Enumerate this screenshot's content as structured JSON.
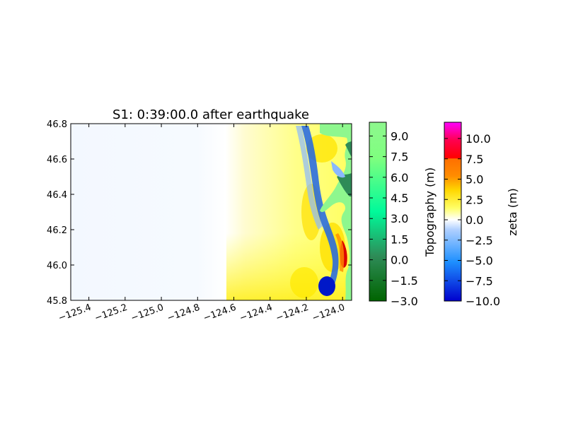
{
  "chart_data": {
    "type": "heatmap",
    "title": "S1: 0:39:00.0 after earthquake",
    "xlabel": "",
    "ylabel": "",
    "xlim": [
      -125.5,
      -123.95
    ],
    "ylim": [
      45.8,
      46.8
    ],
    "x_ticks": [
      {
        "value": -125.4,
        "label": "−125.4"
      },
      {
        "value": -125.2,
        "label": "−125.2"
      },
      {
        "value": -125.0,
        "label": "−125.0"
      },
      {
        "value": -124.8,
        "label": "−124.8"
      },
      {
        "value": -124.6,
        "label": "−124.6"
      },
      {
        "value": -124.4,
        "label": "−124.4"
      },
      {
        "value": -124.2,
        "label": "−124.2"
      },
      {
        "value": -124.0,
        "label": "−124.0"
      }
    ],
    "y_ticks": [
      {
        "value": 45.8,
        "label": "45.8"
      },
      {
        "value": 46.0,
        "label": "46.0"
      },
      {
        "value": 46.2,
        "label": "46.2"
      },
      {
        "value": 46.4,
        "label": "46.4"
      },
      {
        "value": 46.6,
        "label": "46.6"
      },
      {
        "value": 46.8,
        "label": "46.8"
      }
    ],
    "colorbars": [
      {
        "label": "Topography (m)",
        "range": [
          -3.0,
          10.0
        ],
        "ticks": [
          {
            "value": 9.0,
            "label": "9.0"
          },
          {
            "value": 7.5,
            "label": "7.5"
          },
          {
            "value": 6.0,
            "label": "6.0"
          },
          {
            "value": 4.5,
            "label": "4.5"
          },
          {
            "value": 3.0,
            "label": "3.0"
          },
          {
            "value": 1.5,
            "label": "1.5"
          },
          {
            "value": 0.0,
            "label": "0.0"
          },
          {
            "value": -1.5,
            "label": "−1.5"
          },
          {
            "value": -3.0,
            "label": "−3.0"
          }
        ],
        "colors": [
          "#006400",
          "#2e8b57",
          "#00fa9a",
          "#7fff7f",
          "#8ef78e"
        ]
      },
      {
        "label": "zeta (m)",
        "range": [
          -10.0,
          12.0
        ],
        "ticks": [
          {
            "value": 10.0,
            "label": "10.0"
          },
          {
            "value": 7.5,
            "label": "7.5"
          },
          {
            "value": 5.0,
            "label": "5.0"
          },
          {
            "value": 2.5,
            "label": "2.5"
          },
          {
            "value": 0.0,
            "label": "0.0"
          },
          {
            "value": -2.5,
            "label": "−2.5"
          },
          {
            "value": -5.0,
            "label": "−5.0"
          },
          {
            "value": -7.5,
            "label": "−7.5"
          },
          {
            "value": -10.0,
            "label": "−10.0"
          }
        ],
        "colors": [
          "#0000cd",
          "#1e90ff",
          "#8ab8ff",
          "#ffffff",
          "#ffff66",
          "#ffd700",
          "#ff8c00",
          "#ff0000",
          "#ff00ff"
        ]
      }
    ],
    "colors": {
      "deep_water": "#f3f8ff",
      "positive_wave": "#ffff40",
      "negative_wave": "#1e64e6",
      "land": "#8ef78e",
      "land_dark": "#2e8b57",
      "peak": "#dd0000"
    }
  }
}
